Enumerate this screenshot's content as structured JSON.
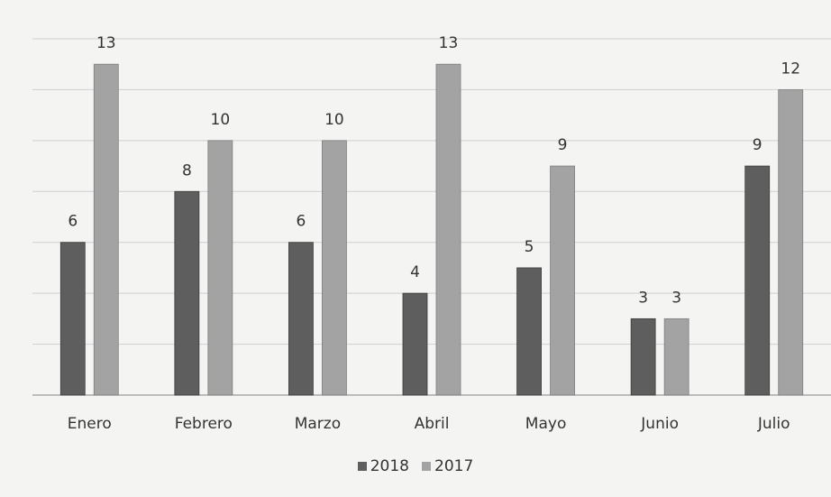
{
  "chart_data": {
    "type": "bar",
    "categories": [
      "Enero",
      "Febrero",
      "Marzo",
      "Abril",
      "Mayo",
      "Junio",
      "Julio"
    ],
    "series": [
      {
        "name": "2018",
        "values": [
          6,
          8,
          6,
          4,
          5,
          3,
          9
        ],
        "color": "#5e5e5e"
      },
      {
        "name": "2017",
        "values": [
          13,
          10,
          10,
          13,
          9,
          3,
          12
        ],
        "color": "#a3a3a3"
      }
    ],
    "title": "",
    "xlabel": "",
    "ylabel": "",
    "ylim": [
      0,
      14
    ],
    "grid": true,
    "legend": "bottom-center"
  }
}
